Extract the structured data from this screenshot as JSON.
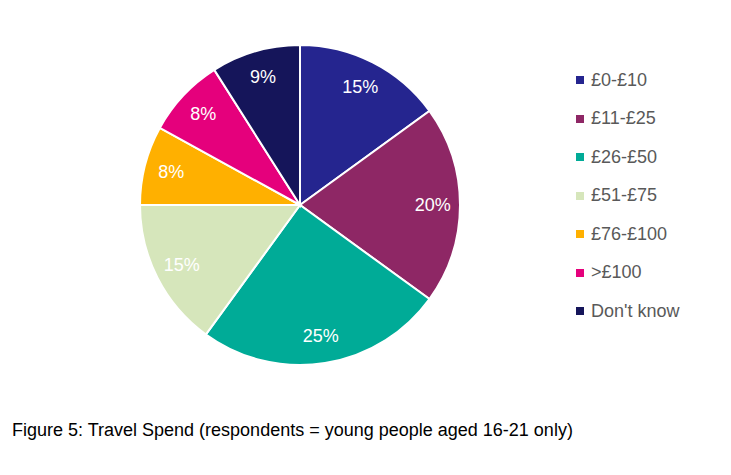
{
  "chart_data": {
    "type": "pie",
    "title": "Figure 5: Travel Spend (respondents = young people aged 16-21 only)",
    "categories": [
      "£0-£10",
      "£11-£25",
      "£26-£50",
      "£51-£75",
      "£76-£100",
      ">£100",
      "Don't know"
    ],
    "values": [
      15,
      20,
      25,
      15,
      8,
      8,
      9
    ],
    "value_labels": [
      "15%",
      "20%",
      "25%",
      "15%",
      "8%",
      "8%",
      "9%"
    ],
    "colors": [
      "#25258f",
      "#8e2765",
      "#00ab97",
      "#d6e6bb",
      "#ffb000",
      "#e5007c",
      "#15155a"
    ],
    "data_labels": true,
    "legend": "right"
  }
}
